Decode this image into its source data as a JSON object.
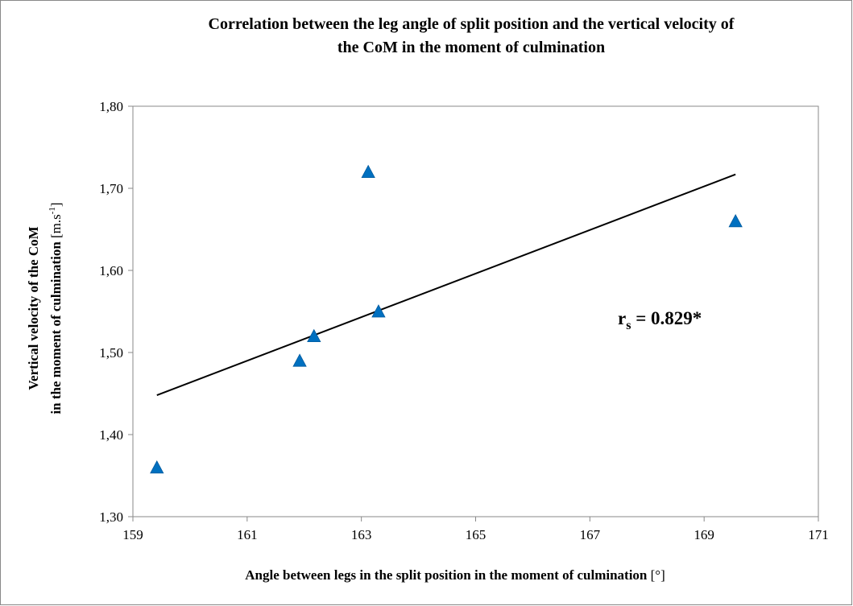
{
  "chart_data": {
    "type": "scatter",
    "title": [
      "Correlation  between the leg angle of split position and the vertical velocity of",
      "the CoM in the moment of culmination"
    ],
    "xlabel": "Angle between legs in the split position in the moment of culmination",
    "xlabel_unit": "[°]",
    "ylabel": [
      "Vertical velocity of the CoM",
      "in the moment of culmination"
    ],
    "ylabel_unit": "[m.s",
    "ylabel_unit_sup": "-1",
    "ylabel_unit_end": "]",
    "xlim": [
      159,
      171
    ],
    "ylim": [
      1.3,
      1.8
    ],
    "x_ticks": [
      "159",
      "161",
      "163",
      "165",
      "167",
      "169",
      "171"
    ],
    "x_tick_values": [
      159,
      161,
      163,
      165,
      167,
      169,
      171
    ],
    "y_ticks": [
      "1,30",
      "1,40",
      "1,50",
      "1,60",
      "1,70",
      "1,80"
    ],
    "y_tick_values": [
      1.3,
      1.4,
      1.5,
      1.6,
      1.7,
      1.8
    ],
    "grid": false,
    "series": [
      {
        "name": "data",
        "marker": "triangle",
        "color": "#0070C0",
        "x": [
          159.42,
          161.92,
          162.17,
          163.12,
          163.3,
          169.55
        ],
        "y": [
          1.36,
          1.49,
          1.52,
          1.72,
          1.55,
          1.66
        ]
      }
    ],
    "trendline": {
      "x": [
        159.42,
        169.55
      ],
      "y": [
        1.448,
        1.717
      ],
      "color": "#000000"
    },
    "annotation": {
      "symbol": "r",
      "subscript": "s",
      "text": " = 0.829*"
    }
  }
}
